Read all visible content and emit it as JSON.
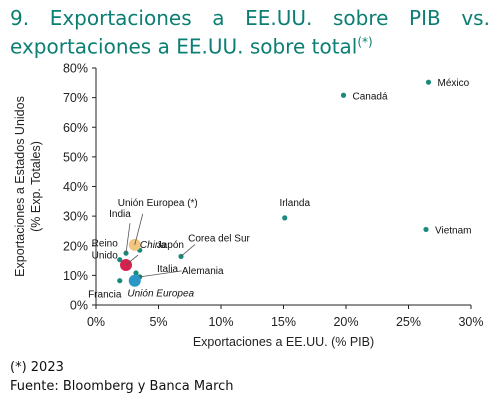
{
  "title": {
    "line1_words": [
      "9.",
      "Exportaciones",
      "a",
      "EE.UU.",
      "sobre",
      "PIB",
      "vs."
    ],
    "line2": "exportaciones a EE.UU. sobre total",
    "sup": "(*)"
  },
  "footer": {
    "note": "(*) 2023",
    "source": "Fuente: Bloomberg y Banca March"
  },
  "chart_data": {
    "type": "scatter",
    "xlabel": "Exportaciones a EE.UU. (% PIB)",
    "ylabel_lines": [
      "Exportaciones a Estados Unidos",
      "(% Exp. Totales)"
    ],
    "xlim": [
      0,
      30
    ],
    "ylim": [
      0,
      80
    ],
    "xticks": [
      0,
      5,
      10,
      15,
      20,
      25,
      30
    ],
    "yticks": [
      0,
      10,
      20,
      30,
      40,
      50,
      60,
      70,
      80
    ],
    "tick_suffix": "%",
    "grid": false,
    "colors": {
      "default": "#1a8a7d",
      "china": "#d6204e",
      "eu": "#2a97c6",
      "eu_2023": "#f2c67e",
      "eu_2023_text": "#c08a2c"
    },
    "points": [
      {
        "label": "México",
        "x": 26.6,
        "y": 75.2,
        "color": "#1a8a7d",
        "size": "s"
      },
      {
        "label": "Canadá",
        "x": 19.8,
        "y": 70.8,
        "color": "#1a8a7d",
        "size": "s"
      },
      {
        "label": "Irlanda",
        "x": 15.1,
        "y": 29.4,
        "color": "#1a8a7d",
        "size": "s"
      },
      {
        "label": "Vietnam",
        "x": 26.4,
        "y": 25.5,
        "color": "#1a8a7d",
        "size": "s"
      },
      {
        "label": "Corea del Sur",
        "x": 6.8,
        "y": 16.4,
        "color": "#1a8a7d",
        "size": "s"
      },
      {
        "label": "India",
        "x": 2.4,
        "y": 17.5,
        "color": "#1a8a7d",
        "size": "s"
      },
      {
        "label": "Japón",
        "x": 3.5,
        "y": 18.5,
        "color": "#1a8a7d",
        "size": "s"
      },
      {
        "label": "Reino Unido",
        "x": 1.9,
        "y": 15.3,
        "color": "#1a8a7d",
        "size": "s"
      },
      {
        "label": "Italia",
        "x": 3.2,
        "y": 10.8,
        "color": "#1a8a7d",
        "size": "s"
      },
      {
        "label": "Alemania",
        "x": 3.5,
        "y": 9.5,
        "color": "#1a8a7d",
        "size": "s"
      },
      {
        "label": "Francia",
        "x": 1.9,
        "y": 8.2,
        "color": "#1a8a7d",
        "size": "s"
      },
      {
        "label": "Unión Europea (*)",
        "x": 3.1,
        "y": 20.3,
        "color": "#f2c67e",
        "size": "l"
      },
      {
        "label": "China",
        "x": 2.4,
        "y": 13.5,
        "color": "#d6204e",
        "size": "l"
      },
      {
        "label": "Unión Europea",
        "x": 3.1,
        "y": 8.2,
        "color": "#2a97c6",
        "size": "l"
      }
    ]
  }
}
